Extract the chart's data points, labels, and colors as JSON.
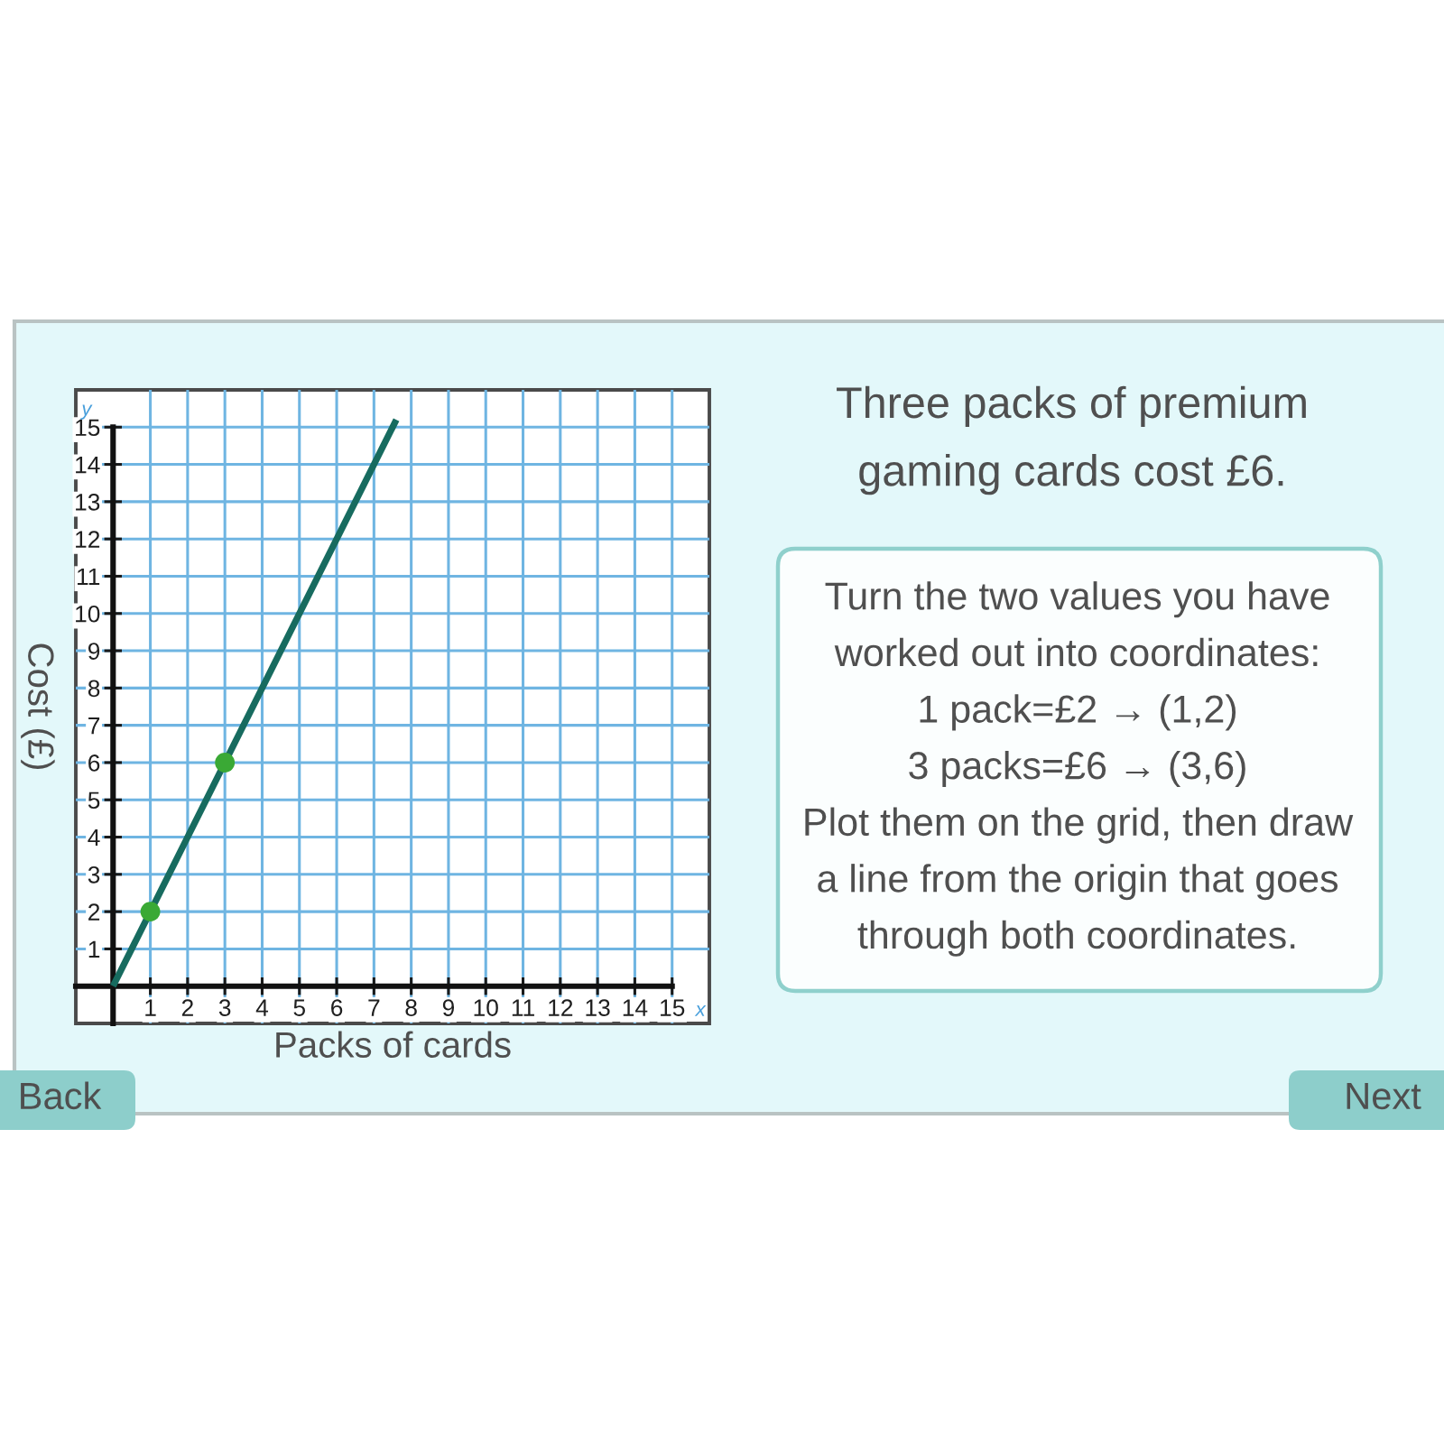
{
  "chart_data": {
    "type": "line",
    "title": "Three packs of premium\ngaming cards cost £6.",
    "xlabel": "Packs of cards",
    "ylabel": "Cost (£)",
    "annotations": [
      "x",
      "y",
      "Turn the two values you have\nworked out into coordinates:\n1 pack=£2 → (1,2)\n3 packs=£6 → (3,6)\nPlot them on the grid, then draw\na line from the origin that goes\nthrough both coordinates.",
      "Back",
      "Next"
    ],
    "series": [
      {
        "x": [
          0,
          7.6
        ],
        "values": [
          0,
          15.2
        ],
        "color": "#176b5f",
        "line_style": "solid"
      },
      {
        "type": "scatter",
        "x": [
          1,
          3
        ],
        "values": [
          2,
          6
        ],
        "color": "#3aa935",
        "marker": "circle"
      }
    ],
    "xlim": [
      -1,
      16
    ],
    "ylim": [
      -1,
      16
    ],
    "xticks": [
      1,
      2,
      3,
      4,
      5,
      6,
      7,
      8,
      9,
      10,
      11,
      12,
      13,
      14,
      15
    ],
    "yticks": [
      1,
      2,
      3,
      4,
      5,
      6,
      7,
      8,
      9,
      10,
      11,
      12,
      13,
      14,
      15
    ],
    "grid": true
  }
}
